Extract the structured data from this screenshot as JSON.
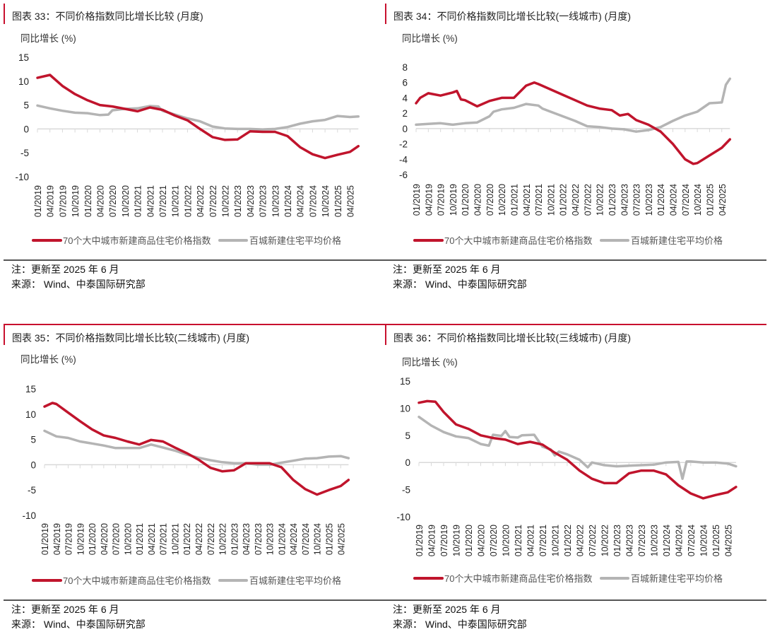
{
  "colors": {
    "series_a": "#c0142c",
    "series_b": "#b4b4b4",
    "accent": "#c8102e",
    "axis": "#d9d9d9"
  },
  "legend": {
    "series_a": "70个大中城市新建商品住宅价格指数",
    "series_b": "百城新建住宅平均价格"
  },
  "note": "注：更新至 2025 年 6 月",
  "source": "来源：  Wind、中泰国际研究部",
  "x_ticks": [
    "01/2019",
    "04/2019",
    "07/2019",
    "10/2019",
    "01/2020",
    "04/2020",
    "07/2020",
    "10/2020",
    "01/2021",
    "04/2021",
    "07/2021",
    "10/2021",
    "01/2022",
    "04/2022",
    "07/2022",
    "10/2022",
    "01/2023",
    "04/2023",
    "07/2023",
    "10/2023",
    "01/2024",
    "04/2024",
    "07/2024",
    "10/2024",
    "01/2025",
    "04/2025"
  ],
  "chart_data": [
    {
      "type": "line",
      "title": "图表 33：不同价格指数同比增长比较 (月度)",
      "ylabel": "同比增长 (%)",
      "ylim": [
        -10,
        15
      ],
      "yticks": [
        "15",
        "10",
        "5",
        "0",
        "-5",
        "-10"
      ],
      "legend_position": "bottom",
      "series": [
        {
          "name": "70个大中城市新建商品住宅价格指数",
          "points": [
            [
              "01/2019",
              10.7
            ],
            [
              "04/2019",
              11.3
            ],
            [
              "07/2019",
              9.0
            ],
            [
              "10/2019",
              7.3
            ],
            [
              "01/2020",
              6.0
            ],
            [
              "04/2020",
              5.0
            ],
            [
              "07/2020",
              4.7
            ],
            [
              "10/2020",
              4.2
            ],
            [
              "01/2021",
              3.7
            ],
            [
              "04/2021",
              4.5
            ],
            [
              "07/2021",
              4.0
            ],
            [
              "10/2021",
              2.8
            ],
            [
              "01/2022",
              1.8
            ],
            [
              "04/2022",
              0.0
            ],
            [
              "07/2022",
              -1.7
            ],
            [
              "10/2022",
              -2.3
            ],
            [
              "01/2023",
              -2.2
            ],
            [
              "04/2023",
              -0.5
            ],
            [
              "07/2023",
              -0.6
            ],
            [
              "10/2023",
              -0.6
            ],
            [
              "01/2024",
              -1.5
            ],
            [
              "04/2024",
              -3.8
            ],
            [
              "07/2024",
              -5.3
            ],
            [
              "10/2024",
              -6.1
            ],
            [
              "01/2025",
              -5.4
            ],
            [
              "04/2025",
              -4.8
            ],
            [
              "06/2025",
              -3.6
            ]
          ]
        },
        {
          "name": "百城新建住宅平均价格",
          "points": [
            [
              "01/2019",
              4.9
            ],
            [
              "04/2019",
              4.3
            ],
            [
              "07/2019",
              3.8
            ],
            [
              "10/2019",
              3.4
            ],
            [
              "01/2020",
              3.3
            ],
            [
              "04/2020",
              2.9
            ],
            [
              "06/2020",
              3.0
            ],
            [
              "07/2020",
              3.9
            ],
            [
              "10/2020",
              4.2
            ],
            [
              "01/2021",
              4.3
            ],
            [
              "04/2021",
              4.8
            ],
            [
              "06/2021",
              4.7
            ],
            [
              "07/2021",
              3.8
            ],
            [
              "10/2021",
              3.0
            ],
            [
              "01/2022",
              2.2
            ],
            [
              "04/2022",
              1.6
            ],
            [
              "07/2022",
              0.5
            ],
            [
              "10/2022",
              0.1
            ],
            [
              "01/2023",
              0.0
            ],
            [
              "04/2023",
              0.0
            ],
            [
              "07/2023",
              -0.1
            ],
            [
              "10/2023",
              0.0
            ],
            [
              "01/2024",
              0.4
            ],
            [
              "04/2024",
              1.1
            ],
            [
              "07/2024",
              1.6
            ],
            [
              "10/2024",
              1.9
            ],
            [
              "01/2025",
              2.7
            ],
            [
              "04/2025",
              2.5
            ],
            [
              "06/2025",
              2.6
            ]
          ]
        }
      ]
    },
    {
      "type": "line",
      "title": "图表 34：不同价格指数同比增长比较(一线城市) (月度)",
      "ylabel": "同比增长 (%)",
      "ylim": [
        -6,
        8
      ],
      "yticks": [
        "8",
        "6",
        "4",
        "2",
        "0",
        "-2",
        "-4",
        "-6"
      ],
      "legend_position": "bottom",
      "series": [
        {
          "name": "70个大中城市新建商品住宅价格指数",
          "points": [
            [
              "01/2019",
              3.3
            ],
            [
              "02/2019",
              4.0
            ],
            [
              "04/2019",
              4.6
            ],
            [
              "07/2019",
              4.3
            ],
            [
              "10/2019",
              4.7
            ],
            [
              "11/2019",
              4.9
            ],
            [
              "12/2019",
              3.8
            ],
            [
              "01/2020",
              3.7
            ],
            [
              "04/2020",
              2.9
            ],
            [
              "07/2020",
              3.6
            ],
            [
              "10/2020",
              4.0
            ],
            [
              "01/2021",
              4.0
            ],
            [
              "04/2021",
              5.6
            ],
            [
              "06/2021",
              6.0
            ],
            [
              "07/2021",
              5.8
            ],
            [
              "10/2021",
              5.1
            ],
            [
              "01/2022",
              4.4
            ],
            [
              "04/2022",
              3.7
            ],
            [
              "07/2022",
              3.0
            ],
            [
              "10/2022",
              2.6
            ],
            [
              "01/2023",
              2.4
            ],
            [
              "03/2023",
              1.7
            ],
            [
              "05/2023",
              1.9
            ],
            [
              "07/2023",
              1.1
            ],
            [
              "10/2023",
              0.5
            ],
            [
              "01/2024",
              -0.4
            ],
            [
              "04/2024",
              -2.0
            ],
            [
              "07/2024",
              -4.0
            ],
            [
              "09/2024",
              -4.6
            ],
            [
              "10/2024",
              -4.5
            ],
            [
              "01/2025",
              -3.5
            ],
            [
              "04/2025",
              -2.5
            ],
            [
              "06/2025",
              -1.4
            ]
          ]
        },
        {
          "name": "百城新建住宅平均价格",
          "points": [
            [
              "01/2019",
              0.5
            ],
            [
              "04/2019",
              0.6
            ],
            [
              "07/2019",
              0.7
            ],
            [
              "10/2019",
              0.5
            ],
            [
              "01/2020",
              0.7
            ],
            [
              "04/2020",
              0.8
            ],
            [
              "07/2020",
              1.6
            ],
            [
              "08/2020",
              2.2
            ],
            [
              "10/2020",
              2.5
            ],
            [
              "01/2021",
              2.7
            ],
            [
              "04/2021",
              3.2
            ],
            [
              "07/2021",
              3.0
            ],
            [
              "08/2021",
              2.6
            ],
            [
              "10/2021",
              2.2
            ],
            [
              "01/2022",
              1.6
            ],
            [
              "04/2022",
              1.0
            ],
            [
              "07/2022",
              0.3
            ],
            [
              "10/2022",
              0.2
            ],
            [
              "01/2023",
              0.0
            ],
            [
              "04/2023",
              -0.1
            ],
            [
              "07/2023",
              -0.4
            ],
            [
              "10/2023",
              -0.2
            ],
            [
              "01/2024",
              0.2
            ],
            [
              "04/2024",
              1.0
            ],
            [
              "07/2024",
              1.7
            ],
            [
              "10/2024",
              2.2
            ],
            [
              "01/2025",
              3.3
            ],
            [
              "04/2025",
              3.4
            ],
            [
              "05/2025",
              5.7
            ],
            [
              "06/2025",
              6.5
            ]
          ]
        }
      ]
    },
    {
      "type": "line",
      "title": "图表 35：不同价格指数同比增长比较(二线城市) (月度)",
      "ylabel": "同比增长 (%)",
      "ylim": [
        -10,
        15
      ],
      "yticks": [
        "15",
        "10",
        "5",
        "0",
        "-5",
        "-10"
      ],
      "legend_position": "bottom",
      "series": [
        {
          "name": "70个大中城市新建商品住宅价格指数",
          "points": [
            [
              "01/2019",
              11.5
            ],
            [
              "03/2019",
              12.2
            ],
            [
              "04/2019",
              12.0
            ],
            [
              "07/2019",
              10.3
            ],
            [
              "10/2019",
              8.6
            ],
            [
              "01/2020",
              7.0
            ],
            [
              "04/2020",
              5.8
            ],
            [
              "07/2020",
              5.3
            ],
            [
              "10/2020",
              4.6
            ],
            [
              "01/2021",
              4.0
            ],
            [
              "04/2021",
              4.9
            ],
            [
              "07/2021",
              4.6
            ],
            [
              "10/2021",
              3.4
            ],
            [
              "01/2022",
              2.3
            ],
            [
              "04/2022",
              1.0
            ],
            [
              "07/2022",
              -0.6
            ],
            [
              "10/2022",
              -1.3
            ],
            [
              "01/2023",
              -1.1
            ],
            [
              "04/2023",
              0.3
            ],
            [
              "07/2023",
              0.3
            ],
            [
              "10/2023",
              0.3
            ],
            [
              "01/2024",
              -0.5
            ],
            [
              "04/2024",
              -3.0
            ],
            [
              "07/2024",
              -4.8
            ],
            [
              "10/2024",
              -5.9
            ],
            [
              "01/2025",
              -5.0
            ],
            [
              "04/2025",
              -4.2
            ],
            [
              "06/2025",
              -3.0
            ]
          ]
        },
        {
          "name": "百城新建住宅平均价格",
          "points": [
            [
              "01/2019",
              6.7
            ],
            [
              "04/2019",
              5.6
            ],
            [
              "07/2019",
              5.3
            ],
            [
              "10/2019",
              4.6
            ],
            [
              "01/2020",
              4.2
            ],
            [
              "04/2020",
              3.8
            ],
            [
              "07/2020",
              3.3
            ],
            [
              "10/2020",
              3.3
            ],
            [
              "01/2021",
              3.3
            ],
            [
              "04/2021",
              4.0
            ],
            [
              "07/2021",
              3.4
            ],
            [
              "10/2021",
              2.8
            ],
            [
              "01/2022",
              2.0
            ],
            [
              "04/2022",
              1.4
            ],
            [
              "07/2022",
              0.9
            ],
            [
              "10/2022",
              0.5
            ],
            [
              "01/2023",
              0.3
            ],
            [
              "04/2023",
              0.3
            ],
            [
              "07/2023",
              0.0
            ],
            [
              "10/2023",
              0.0
            ],
            [
              "01/2024",
              0.4
            ],
            [
              "04/2024",
              0.8
            ],
            [
              "07/2024",
              1.2
            ],
            [
              "10/2024",
              1.3
            ],
            [
              "01/2025",
              1.6
            ],
            [
              "04/2025",
              1.7
            ],
            [
              "06/2025",
              1.3
            ]
          ]
        }
      ]
    },
    {
      "type": "line",
      "title": "图表 36：不同价格指数同比增长比较(三线城市) (月度)",
      "ylabel": "同比增长 (%)",
      "ylim": [
        -10,
        15
      ],
      "yticks": [
        "15",
        "10",
        "5",
        "0",
        "-5",
        "-10"
      ],
      "legend_position": "bottom",
      "series": [
        {
          "name": "70个大中城市新建商品住宅价格指数",
          "points": [
            [
              "01/2019",
              11.0
            ],
            [
              "03/2019",
              11.3
            ],
            [
              "05/2019",
              11.2
            ],
            [
              "07/2019",
              9.3
            ],
            [
              "10/2019",
              7.0
            ],
            [
              "01/2020",
              6.2
            ],
            [
              "04/2020",
              5.0
            ],
            [
              "07/2020",
              4.5
            ],
            [
              "10/2020",
              4.2
            ],
            [
              "01/2021",
              3.4
            ],
            [
              "04/2021",
              3.8
            ],
            [
              "07/2021",
              3.3
            ],
            [
              "10/2021",
              1.8
            ],
            [
              "01/2022",
              0.5
            ],
            [
              "04/2022",
              -1.5
            ],
            [
              "07/2022",
              -3.0
            ],
            [
              "10/2022",
              -3.8
            ],
            [
              "01/2023",
              -3.8
            ],
            [
              "04/2023",
              -2.0
            ],
            [
              "07/2023",
              -1.5
            ],
            [
              "10/2023",
              -1.5
            ],
            [
              "01/2024",
              -2.2
            ],
            [
              "04/2024",
              -4.2
            ],
            [
              "07/2024",
              -5.7
            ],
            [
              "10/2024",
              -6.6
            ],
            [
              "01/2025",
              -6.0
            ],
            [
              "04/2025",
              -5.5
            ],
            [
              "06/2025",
              -4.5
            ]
          ]
        },
        {
          "name": "百城新建住宅平均价格",
          "points": [
            [
              "01/2019",
              8.4
            ],
            [
              "04/2019",
              6.8
            ],
            [
              "07/2019",
              5.6
            ],
            [
              "10/2019",
              4.8
            ],
            [
              "01/2020",
              4.5
            ],
            [
              "04/2020",
              3.4
            ],
            [
              "06/2020",
              3.1
            ],
            [
              "07/2020",
              5.1
            ],
            [
              "09/2020",
              4.9
            ],
            [
              "10/2020",
              5.8
            ],
            [
              "11/2020",
              4.7
            ],
            [
              "01/2021",
              4.6
            ],
            [
              "02/2021",
              5.0
            ],
            [
              "05/2021",
              5.1
            ],
            [
              "07/2021",
              2.9
            ],
            [
              "09/2021",
              2.4
            ],
            [
              "10/2021",
              1.3
            ],
            [
              "11/2021",
              2.0
            ],
            [
              "01/2022",
              1.5
            ],
            [
              "04/2022",
              0.5
            ],
            [
              "06/2022",
              -0.9
            ],
            [
              "07/2022",
              0.0
            ],
            [
              "10/2022",
              -0.5
            ],
            [
              "01/2023",
              -0.7
            ],
            [
              "04/2023",
              -0.6
            ],
            [
              "07/2023",
              -0.5
            ],
            [
              "10/2023",
              -0.4
            ],
            [
              "01/2024",
              0.0
            ],
            [
              "04/2024",
              0.1
            ],
            [
              "05/2024",
              -3.0
            ],
            [
              "06/2024",
              0.2
            ],
            [
              "07/2024",
              0.2
            ],
            [
              "10/2024",
              0.0
            ],
            [
              "01/2025",
              0.0
            ],
            [
              "04/2025",
              -0.2
            ],
            [
              "06/2025",
              -0.7
            ]
          ]
        }
      ]
    }
  ]
}
